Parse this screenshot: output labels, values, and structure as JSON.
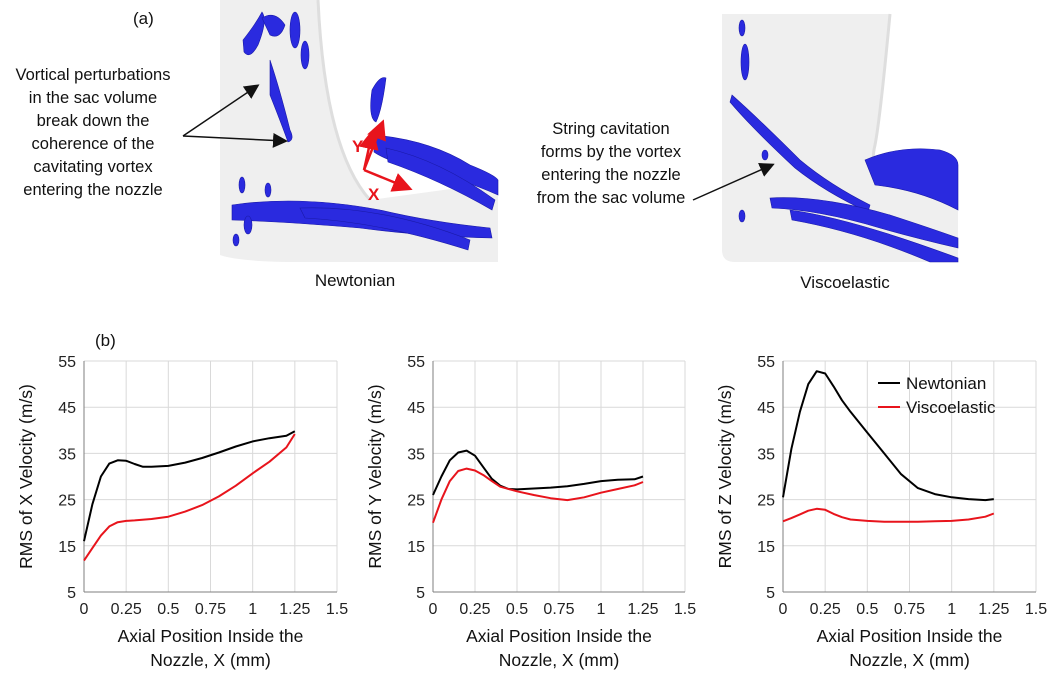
{
  "figure": {
    "panel_a_label": "(a)",
    "panel_b_label": "(b)",
    "annotation_left": "Vortical perturbations in the sac volume break down the coherence of the cavitating vortex entering the nozzle",
    "annotation_right": "String cavitation forms by the vortex entering the nozzle from the sac volume",
    "caption_left": "Newtonian",
    "caption_right": "Viscoelastic",
    "axis_marker_y": "Y",
    "axis_marker_x": "X",
    "colors": {
      "newtonian": "#000000",
      "viscoelastic": "#e8141c",
      "vortex": "#2a2adf",
      "arrow": "#e8141c"
    }
  },
  "chart_data": [
    {
      "type": "line",
      "ylabel": "RMS of X Velocity (m/s)",
      "xlabel_line1": "Axial Position Inside the",
      "xlabel_line2": "Nozzle, X (mm)",
      "xlim": [
        0,
        1.5
      ],
      "ylim": [
        5,
        55
      ],
      "xticks": [
        0,
        0.25,
        0.5,
        0.75,
        1,
        1.25,
        1.5
      ],
      "xtick_labels": [
        "0",
        "0.25",
        "0.5",
        "0.75",
        "1",
        "1.25",
        "1.5"
      ],
      "yticks": [
        5,
        15,
        25,
        35,
        45,
        55
      ],
      "grid": true,
      "series": [
        {
          "name": "Newtonian",
          "color": "#000000",
          "x": [
            0,
            0.05,
            0.1,
            0.15,
            0.2,
            0.25,
            0.3,
            0.35,
            0.4,
            0.5,
            0.6,
            0.7,
            0.8,
            0.9,
            1.0,
            1.1,
            1.2,
            1.25
          ],
          "y": [
            16,
            24,
            30,
            32.8,
            33.5,
            33.4,
            32.7,
            32.1,
            32.1,
            32.3,
            33.0,
            34.0,
            35.2,
            36.5,
            37.6,
            38.3,
            38.8,
            39.8
          ]
        },
        {
          "name": "Viscoelastic",
          "color": "#e8141c",
          "x": [
            0,
            0.05,
            0.1,
            0.15,
            0.2,
            0.25,
            0.3,
            0.4,
            0.5,
            0.6,
            0.7,
            0.8,
            0.9,
            1.0,
            1.1,
            1.2,
            1.25
          ],
          "y": [
            11.8,
            14.5,
            17.2,
            19.2,
            20.1,
            20.4,
            20.5,
            20.8,
            21.3,
            22.4,
            23.8,
            25.7,
            28.0,
            30.7,
            33.2,
            36.3,
            39.2
          ]
        }
      ]
    },
    {
      "type": "line",
      "ylabel": "RMS of Y Velocity (m/s)",
      "xlabel_line1": "Axial Position Inside the",
      "xlabel_line2": "Nozzle, X (mm)",
      "xlim": [
        0,
        1.5
      ],
      "ylim": [
        5,
        55
      ],
      "xticks": [
        0,
        0.25,
        0.5,
        0.75,
        1,
        1.25,
        1.5
      ],
      "xtick_labels": [
        "0",
        "0.25",
        "0.5",
        "0.75",
        "1",
        "1.25",
        "1.5"
      ],
      "yticks": [
        5,
        15,
        25,
        35,
        45,
        55
      ],
      "grid": true,
      "series": [
        {
          "name": "Newtonian",
          "color": "#000000",
          "x": [
            0,
            0.05,
            0.1,
            0.15,
            0.2,
            0.25,
            0.3,
            0.35,
            0.4,
            0.45,
            0.5,
            0.6,
            0.7,
            0.8,
            0.9,
            1.0,
            1.1,
            1.2,
            1.25
          ],
          "y": [
            26,
            30,
            33.5,
            35.2,
            35.6,
            34.5,
            32.0,
            29.5,
            28.0,
            27.3,
            27.2,
            27.4,
            27.6,
            27.9,
            28.4,
            29.0,
            29.3,
            29.4,
            30.0
          ]
        },
        {
          "name": "Viscoelastic",
          "color": "#e8141c",
          "x": [
            0,
            0.05,
            0.1,
            0.15,
            0.2,
            0.25,
            0.3,
            0.35,
            0.4,
            0.5,
            0.6,
            0.7,
            0.8,
            0.9,
            1.0,
            1.1,
            1.2,
            1.25
          ],
          "y": [
            20,
            25,
            29,
            31.2,
            31.7,
            31.3,
            30.3,
            29.0,
            27.8,
            26.8,
            26.0,
            25.3,
            24.9,
            25.5,
            26.5,
            27.3,
            28.1,
            28.8
          ]
        }
      ]
    },
    {
      "type": "line",
      "ylabel": "RMS of Z Velocity (m/s)",
      "xlabel_line1": "Axial Position Inside the",
      "xlabel_line2": "Nozzle, X (mm)",
      "xlim": [
        0,
        1.5
      ],
      "ylim": [
        5,
        55
      ],
      "xticks": [
        0,
        0.25,
        0.5,
        0.75,
        1,
        1.25,
        1.5
      ],
      "xtick_labels": [
        "0",
        "0.25",
        "0.5",
        "0.75",
        "1",
        "1.25",
        "1.5"
      ],
      "yticks": [
        5,
        15,
        25,
        35,
        45,
        55
      ],
      "grid": true,
      "legend": {
        "placement": "top-right",
        "entries": [
          "Newtonian",
          "Viscoelastic"
        ]
      },
      "series": [
        {
          "name": "Newtonian",
          "color": "#000000",
          "x": [
            0,
            0.05,
            0.1,
            0.15,
            0.2,
            0.25,
            0.3,
            0.35,
            0.4,
            0.5,
            0.6,
            0.7,
            0.8,
            0.9,
            1.0,
            1.1,
            1.2,
            1.25
          ],
          "y": [
            25.5,
            36,
            44,
            50,
            52.8,
            52.3,
            49.5,
            46.5,
            44.0,
            39.5,
            35.0,
            30.5,
            27.5,
            26.2,
            25.5,
            25.1,
            24.9,
            25.1
          ]
        },
        {
          "name": "Viscoelastic",
          "color": "#e8141c",
          "x": [
            0,
            0.05,
            0.1,
            0.15,
            0.2,
            0.25,
            0.3,
            0.35,
            0.4,
            0.5,
            0.6,
            0.7,
            0.8,
            0.9,
            1.0,
            1.1,
            1.2,
            1.25
          ],
          "y": [
            20.3,
            21.0,
            21.8,
            22.6,
            23.0,
            22.8,
            21.9,
            21.2,
            20.7,
            20.4,
            20.2,
            20.2,
            20.2,
            20.3,
            20.4,
            20.7,
            21.3,
            22.0
          ]
        }
      ]
    }
  ]
}
